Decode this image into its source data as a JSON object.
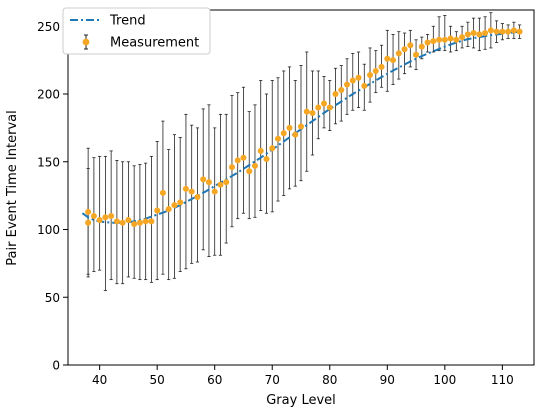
{
  "chart_data": {
    "type": "scatter",
    "title": "",
    "xlabel": "Gray Level",
    "ylabel": "Pair Event Time Interval",
    "xlim": [
      34.5,
      115.5
    ],
    "ylim": [
      0,
      262
    ],
    "xticks": [
      40,
      50,
      60,
      70,
      80,
      90,
      100,
      110
    ],
    "yticks": [
      0,
      50,
      100,
      150,
      200,
      250
    ],
    "grid": false,
    "legend_position": "top-left",
    "legend": [
      {
        "label": "Trend",
        "style": "dash-dot-line"
      },
      {
        "label": "Measurement",
        "style": "marker-with-errorbar"
      }
    ],
    "series": [
      {
        "name": "Trend",
        "kind": "line",
        "color": "#1f77b4",
        "x": [
          37,
          38,
          39,
          40,
          41,
          42,
          43,
          44,
          45,
          46,
          47,
          48,
          49,
          50,
          52,
          54,
          56,
          58,
          60,
          62,
          64,
          66,
          68,
          70,
          72,
          74,
          76,
          78,
          80,
          82,
          84,
          86,
          88,
          90,
          92,
          94,
          96,
          98,
          100,
          102,
          104,
          106,
          108,
          110,
          112,
          113
        ],
        "y": [
          112,
          109,
          107,
          106,
          105.5,
          105,
          105,
          105,
          105.5,
          106,
          107,
          108,
          109.5,
          111,
          114,
          118,
          122.5,
          127,
          132,
          137,
          142,
          147.5,
          153,
          159,
          165,
          171,
          177,
          183,
          189,
          194.5,
          200,
          205,
          210,
          215,
          219.5,
          224,
          228,
          231.5,
          235,
          238,
          240.5,
          242,
          243.5,
          244.5,
          245.5,
          246
        ]
      },
      {
        "name": "Measurement",
        "kind": "errorbar",
        "color": "#f5a623",
        "x": [
          38,
          38,
          39,
          40,
          41,
          42,
          43,
          44,
          45,
          46,
          47,
          48,
          49,
          50,
          51,
          52,
          53,
          54,
          55,
          56,
          57,
          58,
          59,
          60,
          61,
          62,
          63,
          64,
          65,
          66,
          67,
          68,
          69,
          70,
          71,
          72,
          73,
          74,
          75,
          76,
          77,
          78,
          79,
          80,
          81,
          82,
          83,
          84,
          85,
          86,
          87,
          88,
          89,
          90,
          91,
          92,
          93,
          94,
          95,
          96,
          97,
          98,
          99,
          100,
          101,
          102,
          103,
          104,
          105,
          106,
          107,
          108,
          109,
          110,
          111,
          112,
          113
        ],
        "y": [
          113,
          105,
          110,
          107,
          109,
          110,
          106,
          105,
          107,
          104,
          105,
          106,
          106,
          114,
          127,
          115,
          118,
          120,
          130,
          128,
          124,
          137,
          135,
          128,
          133,
          135,
          146,
          151,
          153,
          143,
          147,
          158,
          152,
          160,
          167,
          171,
          175,
          170,
          176,
          187,
          186,
          190,
          193,
          190,
          200,
          203,
          207,
          210,
          212,
          206,
          214,
          217,
          220,
          226,
          225,
          230,
          233,
          236,
          229,
          235,
          238,
          239,
          240,
          240,
          241,
          240,
          242,
          244,
          245,
          244,
          245,
          247,
          246,
          246,
          246,
          247,
          246
        ],
        "yerr_low": [
          46,
          40,
          41,
          37,
          54,
          47,
          46,
          45,
          42,
          40,
          42,
          43,
          45,
          51,
          60,
          52,
          54,
          51,
          59,
          53,
          48,
          52,
          55,
          47,
          52,
          45,
          44,
          43,
          41,
          35,
          38,
          44,
          40,
          47,
          46,
          46,
          45,
          38,
          40,
          44,
          31,
          23,
          18,
          17,
          22,
          23,
          22,
          22,
          22,
          18,
          20,
          16,
          15,
          24,
          18,
          19,
          18,
          16,
          11,
          9,
          7,
          8,
          8,
          8,
          10,
          8,
          8,
          9,
          11,
          12,
          12,
          13,
          8,
          6,
          5,
          6,
          5
        ],
        "yerr_high": [
          47,
          40,
          43,
          47,
          45,
          48,
          45,
          45,
          43,
          43,
          43,
          43,
          48,
          51,
          53,
          44,
          52,
          48,
          55,
          49,
          51,
          52,
          57,
          47,
          52,
          50,
          53,
          50,
          52,
          44,
          45,
          52,
          48,
          50,
          45,
          46,
          45,
          40,
          45,
          44,
          31,
          27,
          20,
          20,
          19,
          18,
          19,
          20,
          19,
          16,
          20,
          15,
          16,
          21,
          19,
          16,
          12,
          11,
          11,
          7,
          6,
          11,
          17,
          18,
          9,
          6,
          8,
          9,
          11,
          12,
          12,
          13,
          8,
          6,
          5,
          6,
          5
        ]
      }
    ]
  }
}
